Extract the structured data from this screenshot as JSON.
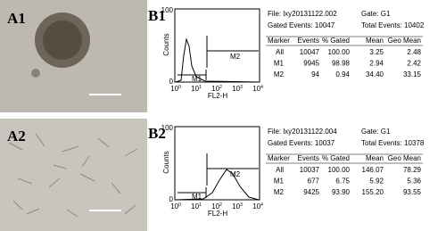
{
  "a1": {
    "label": "A1"
  },
  "a2": {
    "label": "A2"
  },
  "b1": {
    "label": "B1",
    "histogram": {
      "y_axis_label": "Counts",
      "x_axis_label": "FL2-H",
      "yticks": [
        "0",
        "100"
      ],
      "xticks": [
        {
          "base": "10",
          "exp": "0"
        },
        {
          "base": "10",
          "exp": "1"
        },
        {
          "base": "10",
          "exp": "2"
        },
        {
          "base": "10",
          "exp": "3"
        },
        {
          "base": "10",
          "exp": "4"
        }
      ],
      "markers": [
        "M1",
        "M2"
      ]
    },
    "info": {
      "file": "File: lxy20131122.002",
      "gate": "Gate: G1",
      "gated_events": "Gated Events: 10047",
      "total_events": "Total Events: 10402"
    },
    "table": {
      "header": [
        "Marker",
        "Events",
        "% Gated",
        "Mean",
        "Geo Mean"
      ],
      "rows": [
        [
          "All",
          "10047",
          "100.00",
          "3.25",
          "2.48"
        ],
        [
          "M1",
          "9945",
          "98.98",
          "2.94",
          "2.42"
        ],
        [
          "M2",
          "94",
          "0.94",
          "34.40",
          "33.15"
        ]
      ]
    }
  },
  "b2": {
    "label": "B2",
    "histogram": {
      "y_axis_label": "Counts",
      "x_axis_label": "FL2-H",
      "yticks": [
        "0",
        "100"
      ],
      "xticks": [
        {
          "base": "10",
          "exp": "0"
        },
        {
          "base": "10",
          "exp": "1"
        },
        {
          "base": "10",
          "exp": "2"
        },
        {
          "base": "10",
          "exp": "3"
        },
        {
          "base": "10",
          "exp": "4"
        }
      ],
      "markers": [
        "M1",
        "M2"
      ]
    },
    "info": {
      "file": "File: lxy20131122.004",
      "gate": "Gate: G1",
      "gated_events": "Gated Events: 10037",
      "total_events": "Total Events: 10378"
    },
    "table": {
      "header": [
        "Marker",
        "Events",
        "% Gated",
        "Mean",
        "Geo Mean"
      ],
      "rows": [
        [
          "All",
          "10037",
          "100.00",
          "146.07",
          "78.29"
        ],
        [
          "M1",
          "677",
          "6.75",
          "5.92",
          "5.36"
        ],
        [
          "M2",
          "9425",
          "93.90",
          "155.20",
          "93.55"
        ]
      ]
    }
  }
}
